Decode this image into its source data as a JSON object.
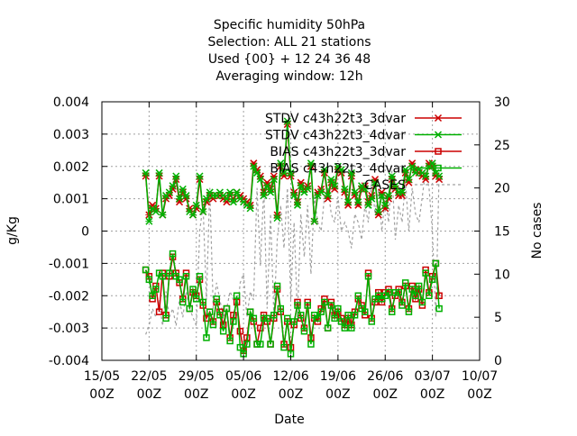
{
  "chart_data": {
    "type": "line",
    "title_lines": [
      "Specific humidity 50hPa",
      "Selection: ALL      21 stations",
      "Used {00} + 12 24 36 48",
      "Averaging window: 12h"
    ],
    "xlabel": "Date",
    "ylabel": "g/Kg",
    "y2label": "No cases",
    "xlim": [
      0,
      56
    ],
    "ylim": [
      -0.004,
      0.004
    ],
    "y2lim": [
      0,
      30
    ],
    "xticks": [
      {
        "x": 0,
        "line1": "15/05",
        "line2": "00Z"
      },
      {
        "x": 7,
        "line1": "22/05",
        "line2": "00Z"
      },
      {
        "x": 14,
        "line1": "29/05",
        "line2": "00Z"
      },
      {
        "x": 21,
        "line1": "05/06",
        "line2": "00Z"
      },
      {
        "x": 28,
        "line1": "12/06",
        "line2": "00Z"
      },
      {
        "x": 35,
        "line1": "19/06",
        "line2": "00Z"
      },
      {
        "x": 42,
        "line1": "26/06",
        "line2": "00Z"
      },
      {
        "x": 49,
        "line1": "03/07",
        "line2": "00Z"
      },
      {
        "x": 56,
        "line1": "10/07",
        "line2": "00Z"
      }
    ],
    "yticks": [
      "0.004",
      "0.003",
      "0.002",
      "0.001",
      "0",
      "-0.001",
      "-0.002",
      "-0.003",
      "-0.004"
    ],
    "yticks_values": [
      0.004,
      0.003,
      0.002,
      0.001,
      0,
      -0.001,
      -0.002,
      -0.003,
      -0.004
    ],
    "y2ticks": [
      "30",
      "25",
      "20",
      "15",
      "10",
      "5",
      "0"
    ],
    "y2ticks_values": [
      30,
      25,
      20,
      15,
      10,
      5,
      0
    ],
    "grid": true,
    "legend_position": "top-right",
    "series": [
      {
        "name": "STDV c43h22t3_3dvar",
        "color": "#cc0000",
        "marker": "x",
        "axis": "y",
        "x": [
          6.5,
          7,
          7.5,
          8,
          8.5,
          9,
          9.5,
          10,
          10.5,
          11,
          11.5,
          12,
          12.5,
          13,
          13.5,
          14,
          14.5,
          15,
          15.5,
          16,
          16.5,
          17,
          17.5,
          18,
          18.5,
          19,
          19.5,
          20,
          20.5,
          21,
          21.5,
          22,
          22.5,
          23,
          23.5,
          24,
          24.5,
          25,
          25.5,
          26,
          26.5,
          27,
          27.5,
          28,
          28.5,
          29,
          29.5,
          30,
          30.5,
          31,
          31.5,
          32,
          32.5,
          33,
          33.5,
          34,
          34.5,
          35,
          35.5,
          36,
          36.5,
          37,
          37.5,
          38,
          38.5,
          39,
          39.5,
          40,
          40.5,
          41,
          41.5,
          42,
          42.5,
          43,
          43.5,
          44,
          44.5,
          45,
          45.5,
          46,
          46.5,
          47,
          47.5,
          48,
          48.5,
          49,
          49.5,
          50
        ],
        "values": [
          0.0017,
          0.0005,
          0.0008,
          0.0007,
          0.0017,
          0.0005,
          0.001,
          0.0011,
          0.0013,
          0.0016,
          0.0009,
          0.0012,
          0.001,
          0.0007,
          0.0005,
          0.0007,
          0.0016,
          0.0006,
          0.0009,
          0.0011,
          0.001,
          0.0011,
          0.0011,
          0.001,
          0.0009,
          0.0011,
          0.001,
          0.0012,
          0.0011,
          0.001,
          0.0009,
          0.0008,
          0.0021,
          0.0019,
          0.0017,
          0.0012,
          0.0015,
          0.0013,
          0.0017,
          0.0005,
          0.002,
          0.0017,
          0.0033,
          0.0017,
          0.0012,
          0.0009,
          0.0015,
          0.0013,
          0.0014,
          0.002,
          0.0003,
          0.0012,
          0.0013,
          0.0018,
          0.001,
          0.0015,
          0.0013,
          0.0019,
          0.0018,
          0.0012,
          0.0008,
          0.0017,
          0.0011,
          0.0008,
          0.0013,
          0.0014,
          0.0009,
          0.0011,
          0.0016,
          0.0005,
          0.0012,
          0.0007,
          0.001,
          0.0016,
          0.0013,
          0.0011,
          0.0011,
          0.0018,
          0.0015,
          0.0021,
          0.0019,
          0.0018,
          0.0017,
          0.0016,
          0.0021,
          0.002,
          0.0017,
          0.0016
        ]
      },
      {
        "name": "STDV c43h22t3_4dvar",
        "color": "#00b000",
        "marker": "x",
        "axis": "y",
        "x": [
          6.5,
          7,
          7.5,
          8,
          8.5,
          9,
          9.5,
          10,
          10.5,
          11,
          11.5,
          12,
          12.5,
          13,
          13.5,
          14,
          14.5,
          15,
          15.5,
          16,
          16.5,
          17,
          17.5,
          18,
          18.5,
          19,
          19.5,
          20,
          20.5,
          21,
          21.5,
          22,
          22.5,
          23,
          23.5,
          24,
          24.5,
          25,
          25.5,
          26,
          26.5,
          27,
          27.5,
          28,
          28.5,
          29,
          29.5,
          30,
          30.5,
          31,
          31.5,
          32,
          32.5,
          33,
          33.5,
          34,
          34.5,
          35,
          35.5,
          36,
          36.5,
          37,
          37.5,
          38,
          38.5,
          39,
          39.5,
          40,
          40.5,
          41,
          41.5,
          42,
          42.5,
          43,
          43.5,
          44,
          44.5,
          45,
          45.5,
          46,
          46.5,
          47,
          47.5,
          48,
          48.5,
          49,
          49.5,
          50
        ],
        "values": [
          0.0018,
          0.0003,
          0.0007,
          0.0006,
          0.0018,
          0.0005,
          0.0011,
          0.0012,
          0.0014,
          0.0017,
          0.001,
          0.0013,
          0.0011,
          0.0006,
          0.0005,
          0.0008,
          0.0017,
          0.0006,
          0.001,
          0.0012,
          0.0011,
          0.0011,
          0.0012,
          0.0011,
          0.001,
          0.0012,
          0.0009,
          0.0012,
          0.001,
          0.0009,
          0.0008,
          0.0007,
          0.002,
          0.0018,
          0.0016,
          0.0011,
          0.0014,
          0.0012,
          0.0016,
          0.0004,
          0.0021,
          0.0018,
          0.0034,
          0.0018,
          0.0011,
          0.0008,
          0.0014,
          0.0012,
          0.0013,
          0.0021,
          0.0003,
          0.0011,
          0.0012,
          0.0019,
          0.0011,
          0.0016,
          0.0014,
          0.002,
          0.0019,
          0.0013,
          0.0009,
          0.0018,
          0.0012,
          0.0009,
          0.0014,
          0.0013,
          0.0008,
          0.001,
          0.0015,
          0.0006,
          0.0011,
          0.0008,
          0.0011,
          0.0017,
          0.0014,
          0.0012,
          0.0012,
          0.0019,
          0.0016,
          0.002,
          0.0018,
          0.0019,
          0.0018,
          0.0017,
          0.002,
          0.0021,
          0.0018,
          0.0017
        ]
      },
      {
        "name": "BIAS c43h22t3_3dvar",
        "color": "#cc0000",
        "marker": "square",
        "axis": "y",
        "x": [
          6.5,
          7,
          7.5,
          8,
          8.5,
          9,
          9.5,
          10,
          10.5,
          11,
          11.5,
          12,
          12.5,
          13,
          13.5,
          14,
          14.5,
          15,
          15.5,
          16,
          16.5,
          17,
          17.5,
          18,
          18.5,
          19,
          19.5,
          20,
          20.5,
          21,
          21.5,
          22,
          22.5,
          23,
          23.5,
          24,
          24.5,
          25,
          25.5,
          26,
          26.5,
          27,
          27.5,
          28,
          28.5,
          29,
          29.5,
          30,
          30.5,
          31,
          31.5,
          32,
          32.5,
          33,
          33.5,
          34,
          34.5,
          35,
          35.5,
          36,
          36.5,
          37,
          37.5,
          38,
          38.5,
          39,
          39.5,
          40,
          40.5,
          41,
          41.5,
          42,
          42.5,
          43,
          43.5,
          44,
          44.5,
          45,
          45.5,
          46,
          46.5,
          47,
          47.5,
          48,
          48.5,
          49,
          49.5,
          50
        ],
        "values": [
          -0.0012,
          -0.0014,
          -0.0021,
          -0.0017,
          -0.0025,
          -0.0013,
          -0.0026,
          -0.0014,
          -0.0008,
          -0.0013,
          -0.0016,
          -0.0021,
          -0.0013,
          -0.0024,
          -0.0019,
          -0.002,
          -0.0015,
          -0.0023,
          -0.0027,
          -0.0025,
          -0.0028,
          -0.0022,
          -0.0025,
          -0.0029,
          -0.0024,
          -0.0033,
          -0.0026,
          -0.0022,
          -0.0031,
          -0.0037,
          -0.0033,
          -0.0025,
          -0.0028,
          -0.0035,
          -0.003,
          -0.0026,
          -0.0028,
          -0.0035,
          -0.0027,
          -0.0018,
          -0.0025,
          -0.0035,
          -0.0028,
          -0.0036,
          -0.0029,
          -0.0022,
          -0.0027,
          -0.003,
          -0.0022,
          -0.0033,
          -0.0027,
          -0.0028,
          -0.0024,
          -0.0021,
          -0.003,
          -0.0022,
          -0.0026,
          -0.0025,
          -0.0027,
          -0.0029,
          -0.0027,
          -0.0029,
          -0.0025,
          -0.0021,
          -0.0023,
          -0.0026,
          -0.0013,
          -0.0027,
          -0.0022,
          -0.0019,
          -0.0022,
          -0.0019,
          -0.0018,
          -0.0024,
          -0.002,
          -0.0018,
          -0.0022,
          -0.0017,
          -0.0024,
          -0.0017,
          -0.0021,
          -0.0018,
          -0.0023,
          -0.0012,
          -0.0019,
          -0.0014,
          -0.001,
          -0.002
        ]
      },
      {
        "name": "BIAS c43h22t3_4dvar",
        "color": "#00b000",
        "marker": "square",
        "axis": "y",
        "x": [
          6.5,
          7,
          7.5,
          8,
          8.5,
          9,
          9.5,
          10,
          10.5,
          11,
          11.5,
          12,
          12.5,
          13,
          13.5,
          14,
          14.5,
          15,
          15.5,
          16,
          16.5,
          17,
          17.5,
          18,
          18.5,
          19,
          19.5,
          20,
          20.5,
          21,
          21.5,
          22,
          22.5,
          23,
          23.5,
          24,
          24.5,
          25,
          25.5,
          26,
          26.5,
          27,
          27.5,
          28,
          28.5,
          29,
          29.5,
          30,
          30.5,
          31,
          31.5,
          32,
          32.5,
          33,
          33.5,
          34,
          34.5,
          35,
          35.5,
          36,
          36.5,
          37,
          37.5,
          38,
          38.5,
          39,
          39.5,
          40,
          40.5,
          41,
          41.5,
          42,
          42.5,
          43,
          43.5,
          44,
          44.5,
          45,
          45.5,
          46,
          46.5,
          47,
          47.5,
          48,
          48.5,
          49,
          49.5,
          50
        ],
        "values": [
          -0.0012,
          -0.0015,
          -0.002,
          -0.0018,
          -0.0013,
          -0.0014,
          -0.0027,
          -0.0013,
          -0.0007,
          -0.0014,
          -0.0015,
          -0.0022,
          -0.0014,
          -0.0024,
          -0.0018,
          -0.0021,
          -0.0014,
          -0.0022,
          -0.0033,
          -0.0025,
          -0.0029,
          -0.0021,
          -0.0026,
          -0.0031,
          -0.0024,
          -0.0034,
          -0.0028,
          -0.002,
          -0.0036,
          -0.0038,
          -0.0035,
          -0.0025,
          -0.0027,
          -0.0035,
          -0.0035,
          -0.0027,
          -0.0027,
          -0.0035,
          -0.0026,
          -0.0017,
          -0.0024,
          -0.0036,
          -0.0027,
          -0.0038,
          -0.0028,
          -0.0023,
          -0.0026,
          -0.0031,
          -0.0023,
          -0.0035,
          -0.0026,
          -0.0027,
          -0.0025,
          -0.0022,
          -0.003,
          -0.0023,
          -0.0027,
          -0.0024,
          -0.0028,
          -0.003,
          -0.0026,
          -0.003,
          -0.0026,
          -0.002,
          -0.0024,
          -0.0025,
          -0.0014,
          -0.0028,
          -0.0021,
          -0.002,
          -0.0021,
          -0.002,
          -0.0019,
          -0.0025,
          -0.0019,
          -0.0019,
          -0.0023,
          -0.0016,
          -0.0025,
          -0.0018,
          -0.002,
          -0.0017,
          -0.0022,
          -0.0013,
          -0.002,
          -0.0015,
          -0.001,
          -0.0024
        ]
      },
      {
        "name": "CASES",
        "color": "#a0a0a0",
        "marker": "none",
        "dash": true,
        "axis": "y2",
        "x": [
          6.5,
          7,
          7.5,
          8,
          8.5,
          9,
          9.5,
          10,
          10.5,
          11,
          11.5,
          12,
          12.5,
          13,
          13.5,
          14,
          14.5,
          15,
          15.5,
          16,
          16.5,
          17,
          17.5,
          18,
          18.5,
          19,
          19.5,
          20,
          20.5,
          21,
          21.5,
          22,
          22.5,
          23,
          23.5,
          24,
          24.5,
          25,
          25.5,
          26,
          26.5,
          27,
          27.5,
          28,
          28.5,
          29,
          29.5,
          30,
          30.5,
          31,
          31.5,
          32,
          32.5,
          33,
          33.5,
          34,
          34.5,
          35,
          35.5,
          36,
          36.5,
          37,
          37.5,
          38,
          38.5,
          39,
          39.5,
          40,
          40.5,
          41,
          41.5,
          42,
          42.5,
          43,
          43.5,
          44,
          44.5,
          45,
          45.5,
          46,
          46.5,
          47,
          47.5,
          48,
          48.5,
          49,
          49.5,
          50
        ],
        "values": [
          3,
          4,
          6,
          5,
          7,
          4,
          8,
          5,
          6,
          4,
          7,
          5,
          8,
          6,
          5,
          4,
          15,
          18,
          7,
          20,
          6,
          9,
          7,
          5,
          6,
          8,
          7,
          5,
          9,
          10,
          5,
          8,
          7,
          20,
          11,
          20,
          6,
          17,
          5,
          14,
          18,
          13,
          20,
          7,
          16,
          5,
          17,
          12,
          18,
          10,
          19,
          16,
          15,
          19,
          20,
          17,
          16,
          19,
          15,
          16,
          15,
          13,
          17,
          16,
          14,
          18,
          16,
          21,
          17,
          20,
          15,
          19,
          16,
          22,
          14,
          18,
          16,
          21,
          15,
          20,
          17,
          16,
          19,
          22,
          20,
          15,
          5,
          22
        ]
      }
    ]
  }
}
